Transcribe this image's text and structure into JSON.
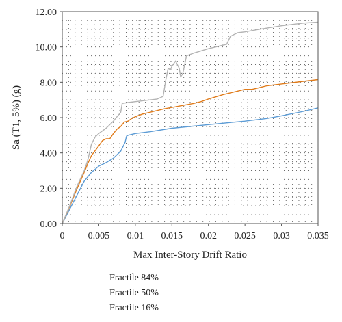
{
  "chart_data": {
    "type": "line",
    "xlabel": "Max Inter-Story Drift Ratio",
    "ylabel": "Sa (T1, 5%) (g)",
    "xlim": [
      0,
      0.035
    ],
    "ylim": [
      0,
      12
    ],
    "x_ticks": [
      "0",
      "0.005",
      "0.01",
      "0.015",
      "0.02",
      "0.025",
      "0.03",
      "0.035"
    ],
    "y_ticks": [
      "0.00",
      "2.00",
      "4.00",
      "6.00",
      "8.00",
      "10.00",
      "12.00"
    ],
    "grid": "dotted",
    "legend_position": "bottom-left",
    "series": [
      {
        "name": "Fractile 84%",
        "color": "#5b9bd5",
        "points": [
          [
            0,
            0
          ],
          [
            0.001,
            0.8
          ],
          [
            0.002,
            1.6
          ],
          [
            0.003,
            2.4
          ],
          [
            0.004,
            2.9
          ],
          [
            0.005,
            3.25
          ],
          [
            0.006,
            3.45
          ],
          [
            0.007,
            3.7
          ],
          [
            0.008,
            4.1
          ],
          [
            0.0086,
            4.6
          ],
          [
            0.0088,
            4.95
          ],
          [
            0.009,
            5.0
          ],
          [
            0.01,
            5.1
          ],
          [
            0.012,
            5.2
          ],
          [
            0.015,
            5.4
          ],
          [
            0.02,
            5.6
          ],
          [
            0.025,
            5.8
          ],
          [
            0.028,
            5.95
          ],
          [
            0.03,
            6.1
          ],
          [
            0.033,
            6.35
          ],
          [
            0.035,
            6.55
          ]
        ]
      },
      {
        "name": "Fractile 50%",
        "color": "#e07b1a",
        "points": [
          [
            0,
            0
          ],
          [
            0.001,
            0.95
          ],
          [
            0.002,
            1.95
          ],
          [
            0.003,
            2.9
          ],
          [
            0.0035,
            3.4
          ],
          [
            0.004,
            3.85
          ],
          [
            0.005,
            4.4
          ],
          [
            0.0055,
            4.7
          ],
          [
            0.006,
            4.8
          ],
          [
            0.0065,
            4.8
          ],
          [
            0.007,
            5.1
          ],
          [
            0.0075,
            5.35
          ],
          [
            0.008,
            5.5
          ],
          [
            0.0085,
            5.75
          ],
          [
            0.009,
            5.8
          ],
          [
            0.0095,
            5.95
          ],
          [
            0.01,
            6.05
          ],
          [
            0.011,
            6.2
          ],
          [
            0.012,
            6.3
          ],
          [
            0.014,
            6.5
          ],
          [
            0.016,
            6.65
          ],
          [
            0.018,
            6.8
          ],
          [
            0.019,
            6.9
          ],
          [
            0.02,
            7.05
          ],
          [
            0.022,
            7.3
          ],
          [
            0.024,
            7.5
          ],
          [
            0.025,
            7.6
          ],
          [
            0.026,
            7.6
          ],
          [
            0.028,
            7.8
          ],
          [
            0.03,
            7.9
          ],
          [
            0.033,
            8.05
          ],
          [
            0.035,
            8.15
          ]
        ]
      },
      {
        "name": "Fractile 16%",
        "color": "#b3b3b3",
        "points": [
          [
            0,
            0
          ],
          [
            0.001,
            1.0
          ],
          [
            0.002,
            2.1
          ],
          [
            0.003,
            3.0
          ],
          [
            0.0035,
            3.6
          ],
          [
            0.004,
            4.5
          ],
          [
            0.0045,
            4.9
          ],
          [
            0.005,
            5.1
          ],
          [
            0.006,
            5.4
          ],
          [
            0.007,
            5.8
          ],
          [
            0.0075,
            6.05
          ],
          [
            0.008,
            6.3
          ],
          [
            0.0082,
            6.8
          ],
          [
            0.009,
            6.85
          ],
          [
            0.01,
            6.9
          ],
          [
            0.012,
            7.0
          ],
          [
            0.013,
            7.05
          ],
          [
            0.0138,
            7.2
          ],
          [
            0.0142,
            8.2
          ],
          [
            0.0145,
            8.8
          ],
          [
            0.0148,
            8.7
          ],
          [
            0.015,
            8.9
          ],
          [
            0.0155,
            9.2
          ],
          [
            0.016,
            8.8
          ],
          [
            0.0162,
            8.3
          ],
          [
            0.0165,
            8.5
          ],
          [
            0.017,
            9.5
          ],
          [
            0.018,
            9.65
          ],
          [
            0.02,
            9.9
          ],
          [
            0.021,
            10.0
          ],
          [
            0.022,
            10.1
          ],
          [
            0.0225,
            10.15
          ],
          [
            0.023,
            10.6
          ],
          [
            0.0235,
            10.7
          ],
          [
            0.024,
            10.8
          ],
          [
            0.025,
            10.85
          ],
          [
            0.027,
            11.0
          ],
          [
            0.03,
            11.2
          ],
          [
            0.033,
            11.35
          ],
          [
            0.035,
            11.4
          ]
        ]
      }
    ]
  }
}
